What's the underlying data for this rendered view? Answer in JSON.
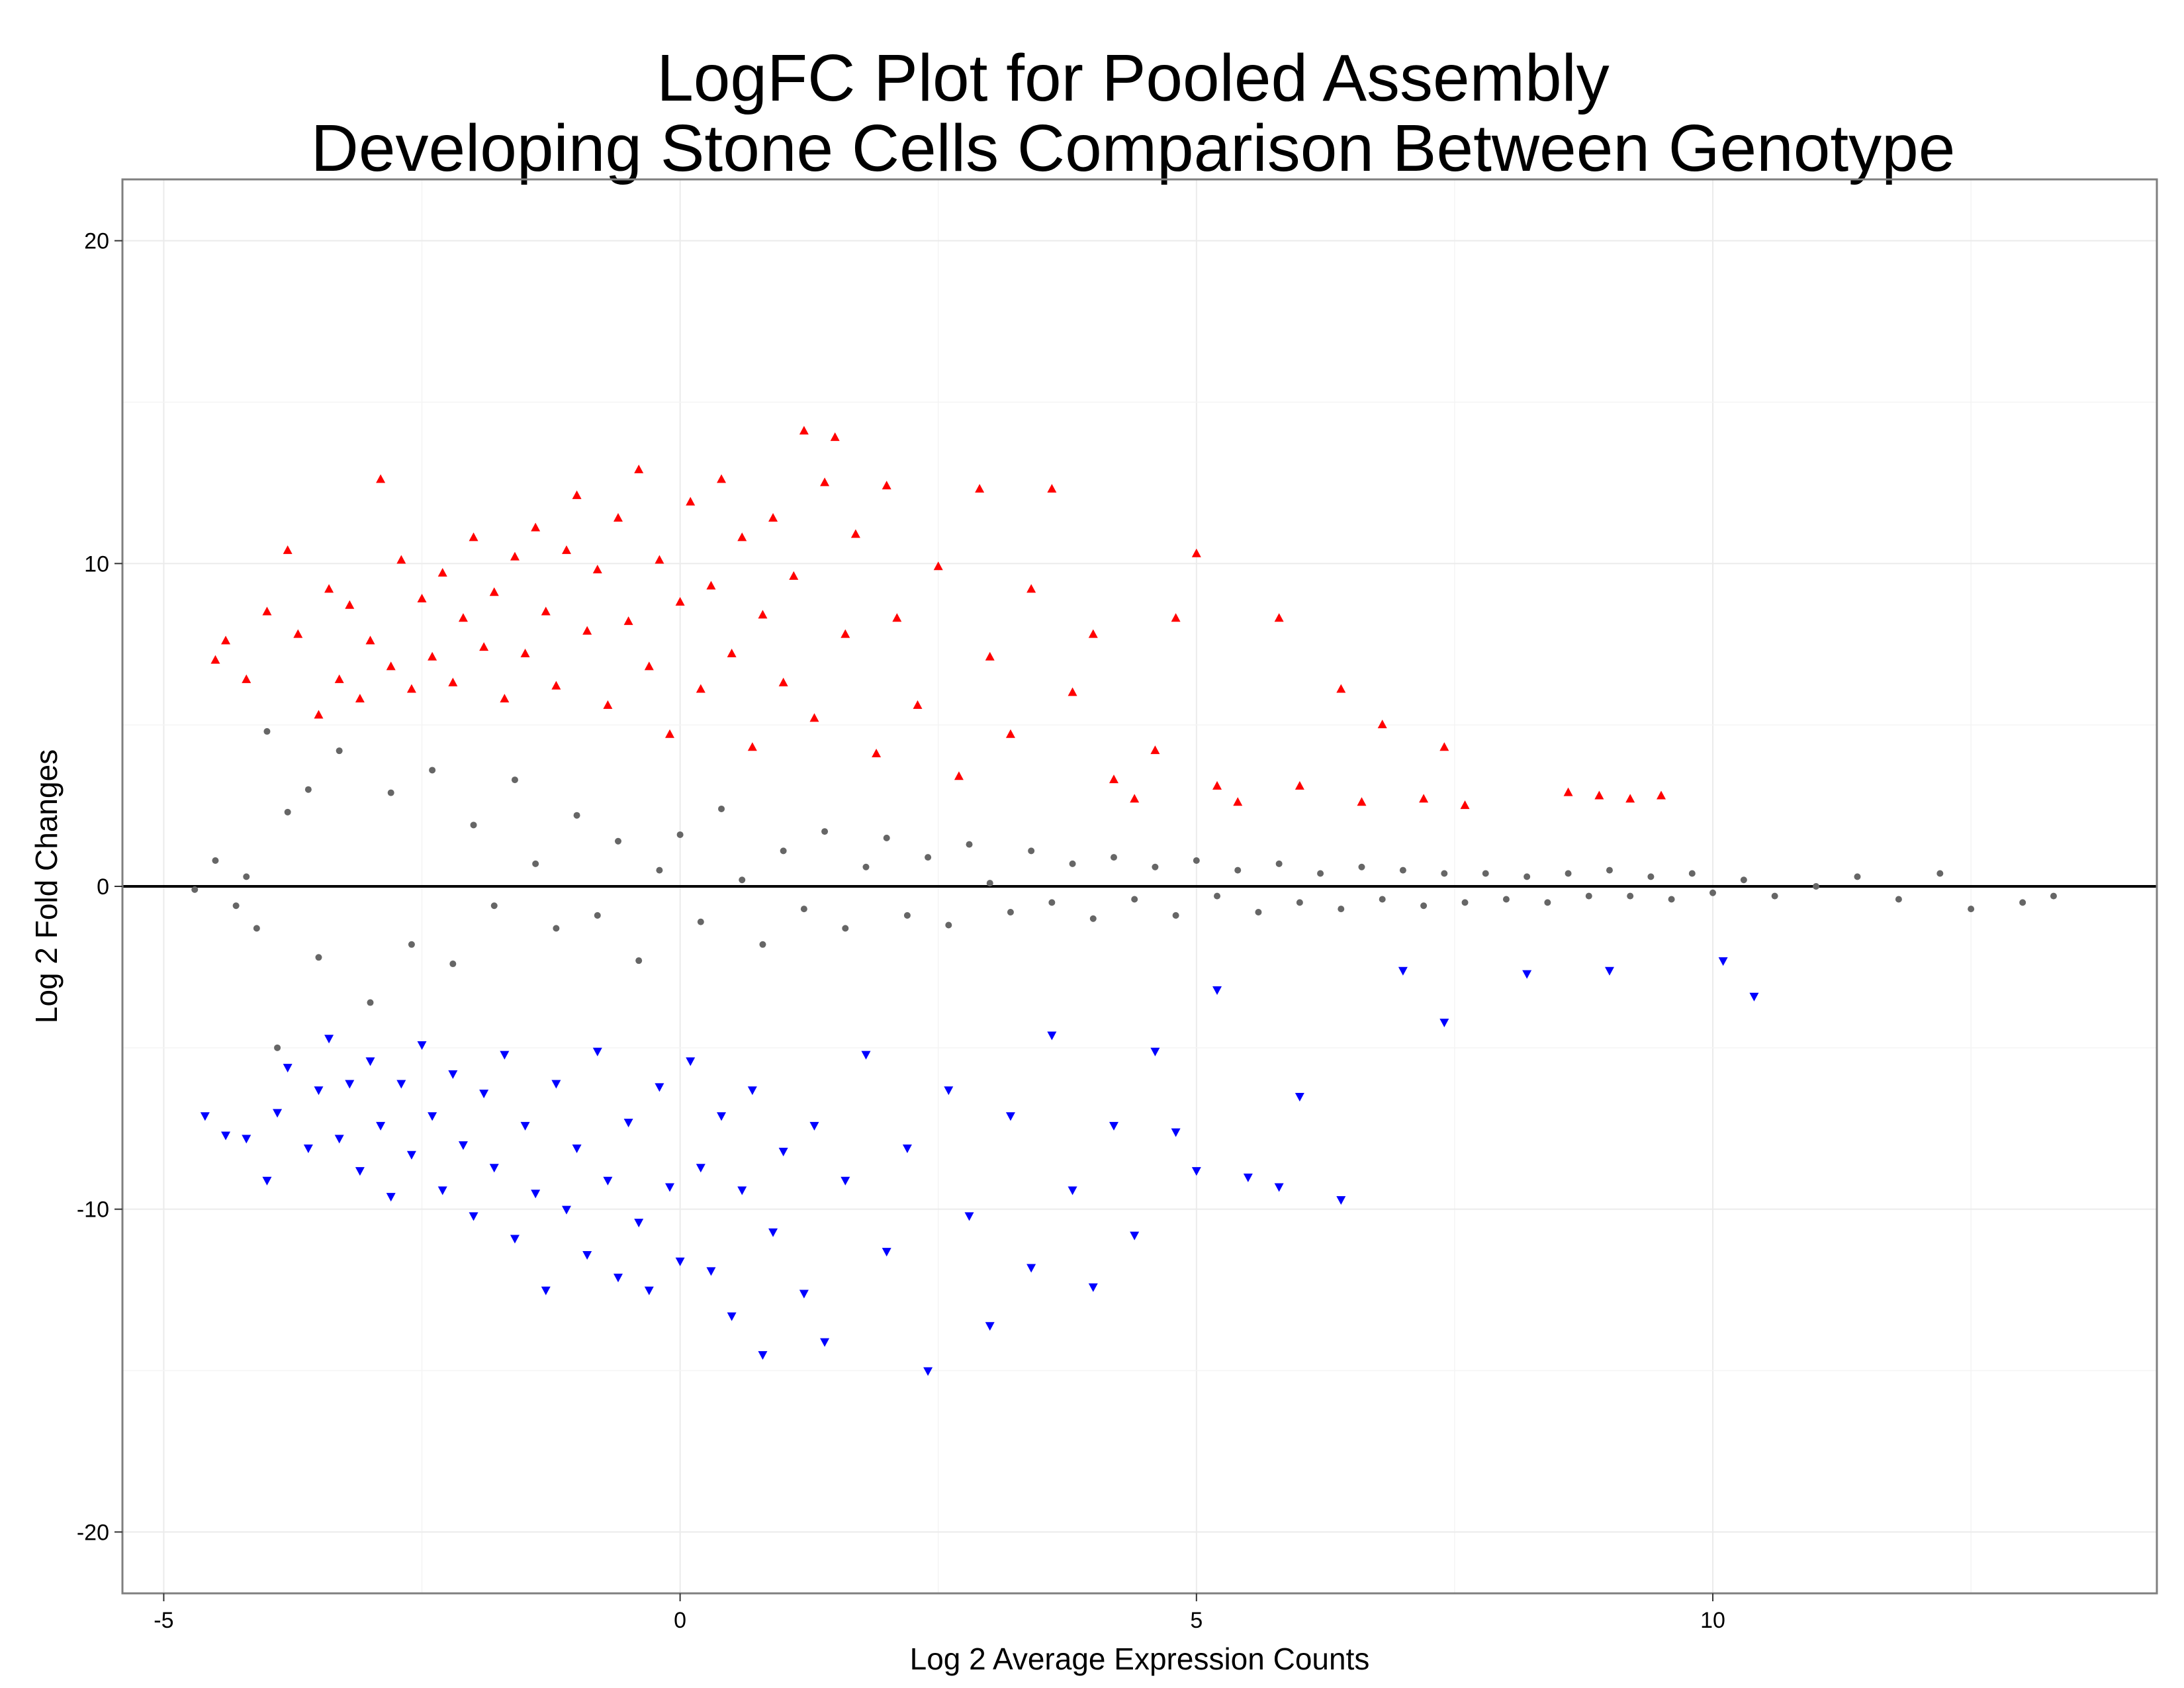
{
  "chart_data": {
    "type": "scatter",
    "title": [
      "LogFC Plot for Pooled Assembly",
      "Developing Stone Cells Comparison Between Genotype"
    ],
    "xlabel": "Log 2 Average Expression Counts",
    "ylabel": "Log 2 Fold Changes",
    "xlim": [
      -5.4,
      14.3
    ],
    "ylim": [
      -21.9,
      21.9
    ],
    "x_ticks": [
      -5,
      0,
      5,
      10
    ],
    "y_ticks": [
      -20,
      -10,
      0,
      10,
      20
    ],
    "x_tick_labels": [
      "-5",
      "0",
      "5",
      "10"
    ],
    "y_tick_labels": [
      "-20",
      "-10",
      "0",
      "10",
      "20"
    ],
    "grid": true,
    "reference_line_y": 0,
    "series": [
      {
        "marker": "circle",
        "color": "#666666",
        "points": [
          [
            -4.7,
            -0.1
          ],
          [
            -4.5,
            0.8
          ],
          [
            -4.3,
            -0.6
          ],
          [
            -4.2,
            0.3
          ],
          [
            -4.1,
            -1.3
          ],
          [
            -4.0,
            4.8
          ],
          [
            -3.9,
            -5.0
          ],
          [
            -3.8,
            2.3
          ],
          [
            -3.6,
            3.0
          ],
          [
            -3.5,
            -2.2
          ],
          [
            -3.3,
            4.2
          ],
          [
            -3.0,
            -3.6
          ],
          [
            -2.8,
            2.9
          ],
          [
            -2.6,
            -1.8
          ],
          [
            -2.4,
            3.6
          ],
          [
            -2.2,
            -2.4
          ],
          [
            -2.0,
            1.9
          ],
          [
            -1.8,
            -0.6
          ],
          [
            -1.6,
            3.3
          ],
          [
            -1.4,
            0.7
          ],
          [
            -1.2,
            -1.3
          ],
          [
            -1.0,
            2.2
          ],
          [
            -0.8,
            -0.9
          ],
          [
            -0.6,
            1.4
          ],
          [
            -0.4,
            -2.3
          ],
          [
            -0.2,
            0.5
          ],
          [
            0.0,
            1.6
          ],
          [
            0.2,
            -1.1
          ],
          [
            0.4,
            2.4
          ],
          [
            0.6,
            0.2
          ],
          [
            0.8,
            -1.8
          ],
          [
            1.0,
            1.1
          ],
          [
            1.2,
            -0.7
          ],
          [
            1.4,
            1.7
          ],
          [
            1.6,
            -1.3
          ],
          [
            1.8,
            0.6
          ],
          [
            2.0,
            1.5
          ],
          [
            2.2,
            -0.9
          ],
          [
            2.4,
            0.9
          ],
          [
            2.6,
            -1.2
          ],
          [
            2.8,
            1.3
          ],
          [
            3.0,
            0.1
          ],
          [
            3.2,
            -0.8
          ],
          [
            3.4,
            1.1
          ],
          [
            3.6,
            -0.5
          ],
          [
            3.8,
            0.7
          ],
          [
            4.0,
            -1.0
          ],
          [
            4.2,
            0.9
          ],
          [
            4.4,
            -0.4
          ],
          [
            4.6,
            0.6
          ],
          [
            4.8,
            -0.9
          ],
          [
            5.0,
            0.8
          ],
          [
            5.2,
            -0.3
          ],
          [
            5.4,
            0.5
          ],
          [
            5.6,
            -0.8
          ],
          [
            5.8,
            0.7
          ],
          [
            6.0,
            -0.5
          ],
          [
            6.2,
            0.4
          ],
          [
            6.4,
            -0.7
          ],
          [
            6.6,
            0.6
          ],
          [
            6.8,
            -0.4
          ],
          [
            7.0,
            0.5
          ],
          [
            7.2,
            -0.6
          ],
          [
            7.4,
            0.4
          ],
          [
            7.6,
            -0.5
          ],
          [
            7.8,
            0.4
          ],
          [
            8.0,
            -0.4
          ],
          [
            8.2,
            0.3
          ],
          [
            8.4,
            -0.5
          ],
          [
            8.6,
            0.4
          ],
          [
            8.8,
            -0.3
          ],
          [
            9.0,
            0.5
          ],
          [
            9.2,
            -0.3
          ],
          [
            9.4,
            0.3
          ],
          [
            9.6,
            -0.4
          ],
          [
            9.8,
            0.4
          ],
          [
            10.0,
            -0.2
          ],
          [
            10.3,
            0.2
          ],
          [
            10.6,
            -0.3
          ],
          [
            11.0,
            0.0
          ],
          [
            11.4,
            0.3
          ],
          [
            11.8,
            -0.4
          ],
          [
            12.2,
            0.4
          ],
          [
            12.5,
            -0.7
          ],
          [
            13.0,
            -0.5
          ],
          [
            13.3,
            -0.3
          ]
        ]
      },
      {
        "marker": "triangle-up",
        "color": "#ff0000",
        "points": [
          [
            -4.5,
            7.0
          ],
          [
            -4.4,
            7.6
          ],
          [
            -4.2,
            6.4
          ],
          [
            -4.0,
            8.5
          ],
          [
            -3.8,
            10.4
          ],
          [
            -3.7,
            7.8
          ],
          [
            -3.5,
            5.3
          ],
          [
            -3.4,
            9.2
          ],
          [
            -3.3,
            6.4
          ],
          [
            -3.2,
            8.7
          ],
          [
            -3.1,
            5.8
          ],
          [
            -3.0,
            7.6
          ],
          [
            -2.9,
            12.6
          ],
          [
            -2.8,
            6.8
          ],
          [
            -2.7,
            10.1
          ],
          [
            -2.6,
            6.1
          ],
          [
            -2.5,
            8.9
          ],
          [
            -2.4,
            7.1
          ],
          [
            -2.3,
            9.7
          ],
          [
            -2.2,
            6.3
          ],
          [
            -2.1,
            8.3
          ],
          [
            -2.0,
            10.8
          ],
          [
            -1.9,
            7.4
          ],
          [
            -1.8,
            9.1
          ],
          [
            -1.7,
            5.8
          ],
          [
            -1.6,
            10.2
          ],
          [
            -1.5,
            7.2
          ],
          [
            -1.4,
            11.1
          ],
          [
            -1.3,
            8.5
          ],
          [
            -1.2,
            6.2
          ],
          [
            -1.1,
            10.4
          ],
          [
            -1.0,
            12.1
          ],
          [
            -0.9,
            7.9
          ],
          [
            -0.8,
            9.8
          ],
          [
            -0.7,
            5.6
          ],
          [
            -0.6,
            11.4
          ],
          [
            -0.5,
            8.2
          ],
          [
            -0.4,
            12.9
          ],
          [
            -0.3,
            6.8
          ],
          [
            -0.2,
            10.1
          ],
          [
            -0.1,
            4.7
          ],
          [
            0.0,
            8.8
          ],
          [
            0.1,
            11.9
          ],
          [
            0.2,
            6.1
          ],
          [
            0.3,
            9.3
          ],
          [
            0.4,
            12.6
          ],
          [
            0.5,
            7.2
          ],
          [
            0.6,
            10.8
          ],
          [
            0.7,
            4.3
          ],
          [
            0.8,
            8.4
          ],
          [
            0.9,
            11.4
          ],
          [
            1.0,
            6.3
          ],
          [
            1.1,
            9.6
          ],
          [
            1.2,
            14.1
          ],
          [
            1.3,
            5.2
          ],
          [
            1.4,
            12.5
          ],
          [
            1.5,
            13.9
          ],
          [
            1.6,
            7.8
          ],
          [
            1.7,
            10.9
          ],
          [
            1.9,
            4.1
          ],
          [
            2.0,
            12.4
          ],
          [
            2.1,
            8.3
          ],
          [
            2.3,
            5.6
          ],
          [
            2.5,
            9.9
          ],
          [
            2.7,
            3.4
          ],
          [
            2.9,
            12.3
          ],
          [
            3.0,
            7.1
          ],
          [
            3.2,
            4.7
          ],
          [
            3.4,
            9.2
          ],
          [
            3.6,
            12.3
          ],
          [
            3.8,
            6.0
          ],
          [
            4.0,
            7.8
          ],
          [
            4.2,
            3.3
          ],
          [
            4.4,
            2.7
          ],
          [
            4.6,
            4.2
          ],
          [
            4.8,
            8.3
          ],
          [
            5.0,
            10.3
          ],
          [
            5.2,
            3.1
          ],
          [
            5.4,
            2.6
          ],
          [
            5.8,
            8.3
          ],
          [
            6.0,
            3.1
          ],
          [
            6.4,
            6.1
          ],
          [
            6.6,
            2.6
          ],
          [
            6.8,
            5.0
          ],
          [
            7.2,
            2.7
          ],
          [
            7.4,
            4.3
          ],
          [
            7.6,
            2.5
          ],
          [
            8.6,
            2.9
          ],
          [
            8.9,
            2.8
          ],
          [
            9.2,
            2.7
          ],
          [
            9.5,
            2.8
          ]
        ]
      },
      {
        "marker": "triangle-down",
        "color": "#0000ff",
        "points": [
          [
            -4.6,
            -7.1
          ],
          [
            -4.4,
            -7.7
          ],
          [
            -4.2,
            -7.8
          ],
          [
            -4.0,
            -9.1
          ],
          [
            -3.9,
            -7.0
          ],
          [
            -3.8,
            -5.6
          ],
          [
            -3.6,
            -8.1
          ],
          [
            -3.5,
            -6.3
          ],
          [
            -3.4,
            -4.7
          ],
          [
            -3.3,
            -7.8
          ],
          [
            -3.2,
            -6.1
          ],
          [
            -3.1,
            -8.8
          ],
          [
            -3.0,
            -5.4
          ],
          [
            -2.9,
            -7.4
          ],
          [
            -2.8,
            -9.6
          ],
          [
            -2.7,
            -6.1
          ],
          [
            -2.6,
            -8.3
          ],
          [
            -2.5,
            -4.9
          ],
          [
            -2.4,
            -7.1
          ],
          [
            -2.3,
            -9.4
          ],
          [
            -2.2,
            -5.8
          ],
          [
            -2.1,
            -8.0
          ],
          [
            -2.0,
            -10.2
          ],
          [
            -1.9,
            -6.4
          ],
          [
            -1.8,
            -8.7
          ],
          [
            -1.7,
            -5.2
          ],
          [
            -1.6,
            -10.9
          ],
          [
            -1.5,
            -7.4
          ],
          [
            -1.4,
            -9.5
          ],
          [
            -1.3,
            -12.5
          ],
          [
            -1.2,
            -6.1
          ],
          [
            -1.1,
            -10.0
          ],
          [
            -1.0,
            -8.1
          ],
          [
            -0.9,
            -11.4
          ],
          [
            -0.8,
            -5.1
          ],
          [
            -0.7,
            -9.1
          ],
          [
            -0.6,
            -12.1
          ],
          [
            -0.5,
            -7.3
          ],
          [
            -0.4,
            -10.4
          ],
          [
            -0.3,
            -12.5
          ],
          [
            -0.2,
            -6.2
          ],
          [
            -0.1,
            -9.3
          ],
          [
            0.0,
            -11.6
          ],
          [
            0.1,
            -5.4
          ],
          [
            0.2,
            -8.7
          ],
          [
            0.3,
            -11.9
          ],
          [
            0.4,
            -7.1
          ],
          [
            0.5,
            -13.3
          ],
          [
            0.6,
            -9.4
          ],
          [
            0.7,
            -6.3
          ],
          [
            0.8,
            -14.5
          ],
          [
            0.9,
            -10.7
          ],
          [
            1.0,
            -8.2
          ],
          [
            1.2,
            -12.6
          ],
          [
            1.3,
            -7.4
          ],
          [
            1.4,
            -14.1
          ],
          [
            1.6,
            -9.1
          ],
          [
            1.8,
            -5.2
          ],
          [
            2.0,
            -11.3
          ],
          [
            2.2,
            -8.1
          ],
          [
            2.4,
            -15.0
          ],
          [
            2.6,
            -6.3
          ],
          [
            2.8,
            -10.2
          ],
          [
            3.0,
            -13.6
          ],
          [
            3.2,
            -7.1
          ],
          [
            3.4,
            -11.8
          ],
          [
            3.6,
            -4.6
          ],
          [
            3.8,
            -9.4
          ],
          [
            4.0,
            -12.4
          ],
          [
            4.2,
            -7.4
          ],
          [
            4.4,
            -10.8
          ],
          [
            4.6,
            -5.1
          ],
          [
            4.8,
            -7.6
          ],
          [
            5.0,
            -8.8
          ],
          [
            5.2,
            -3.2
          ],
          [
            5.5,
            -9.0
          ],
          [
            5.8,
            -9.3
          ],
          [
            6.0,
            -6.5
          ],
          [
            6.4,
            -9.7
          ],
          [
            7.0,
            -2.6
          ],
          [
            7.4,
            -4.2
          ],
          [
            8.2,
            -2.7
          ],
          [
            9.0,
            -2.6
          ],
          [
            10.1,
            -2.3
          ],
          [
            10.4,
            -3.4
          ]
        ]
      }
    ]
  }
}
